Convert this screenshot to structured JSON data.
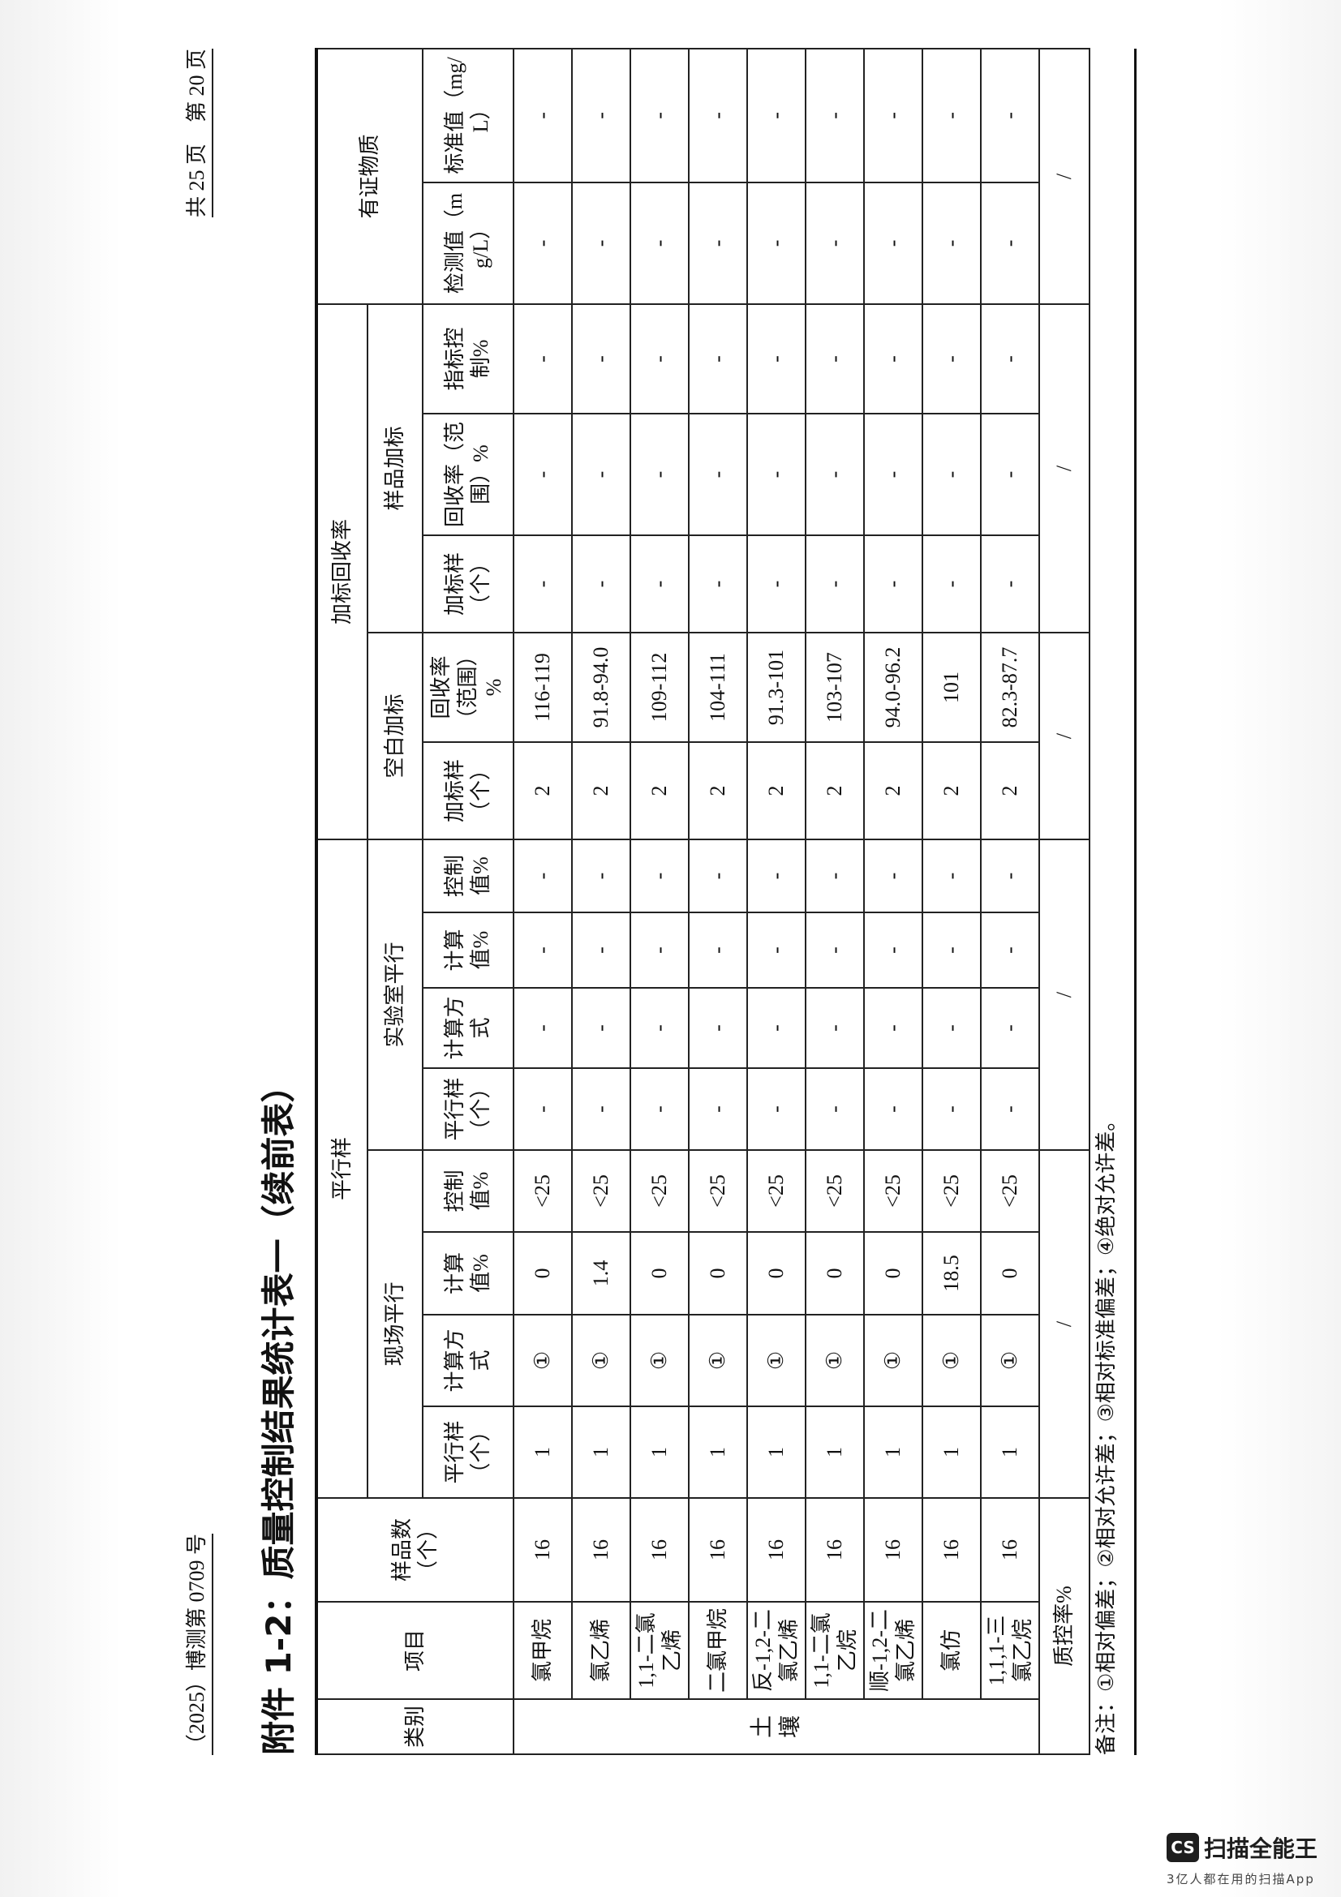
{
  "header": {
    "report_no": "（2025）博测第 0709 号",
    "page": "共 25 页　第 20 页"
  },
  "title": "附件 1-2：质量控制结果统计表一（续前表）",
  "table": {
    "headers": {
      "category": "类别",
      "item": "项目",
      "sample_count": "样品数（个）",
      "parallel": "平行样",
      "field_parallel": "现场平行",
      "lab_parallel": "实验室平行",
      "spike_recovery": "加标回收率",
      "blank_spike": "空白加标",
      "sample_spike": "样品加标",
      "crm": "有证物质",
      "leaf": [
        "平行样（个）",
        "计算方式",
        "计算值%",
        "控制值%",
        "平行样（个）",
        "计算方式",
        "计算值%",
        "控制值%",
        "加标样（个）",
        "回收率（范围）%",
        "加标样（个）",
        "回收率（范围）%",
        "指标控制%",
        "检测值（mg/L）",
        "标准值（mg/L）"
      ]
    },
    "category": "土壤",
    "rows": [
      [
        "氯甲烷",
        "16",
        "1",
        "①",
        "0",
        "<25",
        "-",
        "-",
        "-",
        "-",
        "2",
        "116-119",
        "-",
        "-",
        "-",
        "-",
        "-"
      ],
      [
        "氯乙烯",
        "16",
        "1",
        "①",
        "1.4",
        "<25",
        "-",
        "-",
        "-",
        "-",
        "2",
        "91.8-94.0",
        "-",
        "-",
        "-",
        "-",
        "-"
      ],
      [
        "1,1-二氯乙烯",
        "16",
        "1",
        "①",
        "0",
        "<25",
        "-",
        "-",
        "-",
        "-",
        "2",
        "109-112",
        "-",
        "-",
        "-",
        "-",
        "-"
      ],
      [
        "二氯甲烷",
        "16",
        "1",
        "①",
        "0",
        "<25",
        "-",
        "-",
        "-",
        "-",
        "2",
        "104-111",
        "-",
        "-",
        "-",
        "-",
        "-"
      ],
      [
        "反-1,2-二氯乙烯",
        "16",
        "1",
        "①",
        "0",
        "<25",
        "-",
        "-",
        "-",
        "-",
        "2",
        "91.3-101",
        "-",
        "-",
        "-",
        "-",
        "-"
      ],
      [
        "1,1-二氯乙烷",
        "16",
        "1",
        "①",
        "0",
        "<25",
        "-",
        "-",
        "-",
        "-",
        "2",
        "103-107",
        "-",
        "-",
        "-",
        "-",
        "-"
      ],
      [
        "顺-1,2-二氯乙烯",
        "16",
        "1",
        "①",
        "0",
        "<25",
        "-",
        "-",
        "-",
        "-",
        "2",
        "94.0-96.2",
        "-",
        "-",
        "-",
        "-",
        "-"
      ],
      [
        "氯仿",
        "16",
        "1",
        "①",
        "18.5",
        "<25",
        "-",
        "-",
        "-",
        "-",
        "2",
        "101",
        "-",
        "-",
        "-",
        "-",
        "-"
      ],
      [
        "1,1,1-三氯乙烷",
        "16",
        "1",
        "①",
        "0",
        "<25",
        "-",
        "-",
        "-",
        "-",
        "2",
        "82.3-87.7",
        "-",
        "-",
        "-",
        "-",
        "-"
      ]
    ],
    "qc_rate": {
      "label": "质控率%",
      "values": [
        "/",
        "/",
        "/",
        "/",
        "/"
      ]
    }
  },
  "footnote": "备注：①相对偏差；②相对允许差；③相对标准偏差；④绝对允许差。",
  "watermark": {
    "logo": "CS",
    "name": "扫描全能王",
    "tagline": "3亿人都在用的扫描App"
  }
}
